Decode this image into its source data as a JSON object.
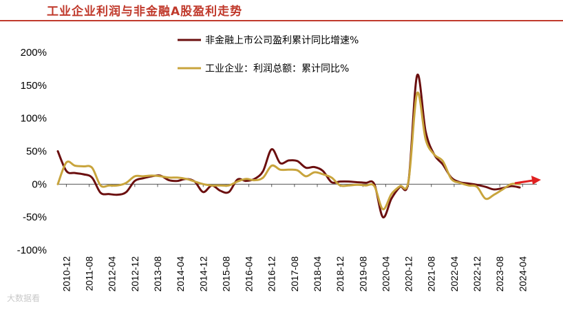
{
  "page_title": "工业企业利润与非金融A股盈利走势",
  "watermark": "大数据看",
  "chart_data": {
    "type": "line",
    "title": "",
    "xlabel": "",
    "ylabel": "",
    "ylim": [
      -100,
      200
    ],
    "yticks": [
      -100,
      -50,
      0,
      50,
      100,
      150,
      200
    ],
    "ytick_suffix": "%",
    "xtick_labels": [
      "2010-12",
      "2011-08",
      "2012-04",
      "2012-12",
      "2013-08",
      "2014-04",
      "2014-12",
      "2015-08",
      "2016-04",
      "2016-12",
      "2017-08",
      "2018-04",
      "2018-12",
      "2019-08",
      "2020-04",
      "2020-12",
      "2021-08",
      "2022-04",
      "2022-12",
      "2023-08",
      "2024-04"
    ],
    "legend_position": "top-center",
    "arrow_color": "#e02020",
    "series": [
      {
        "name": "非金融上市公司盈利累计同比增速%",
        "color": "#6b0f0f",
        "points": [
          [
            "2010-09",
            50
          ],
          [
            "2010-12",
            20
          ],
          [
            "2011-03",
            17
          ],
          [
            "2011-06",
            15
          ],
          [
            "2011-09",
            10
          ],
          [
            "2011-12",
            -13
          ],
          [
            "2012-03",
            -15
          ],
          [
            "2012-06",
            -16
          ],
          [
            "2012-09",
            -12
          ],
          [
            "2012-12",
            5
          ],
          [
            "2013-03",
            9
          ],
          [
            "2013-06",
            12
          ],
          [
            "2013-09",
            13
          ],
          [
            "2013-12",
            6
          ],
          [
            "2014-03",
            5
          ],
          [
            "2014-06",
            8
          ],
          [
            "2014-09",
            4
          ],
          [
            "2014-12",
            -12
          ],
          [
            "2015-03",
            -2
          ],
          [
            "2015-06",
            -10
          ],
          [
            "2015-09",
            -12
          ],
          [
            "2015-12",
            7
          ],
          [
            "2016-03",
            5
          ],
          [
            "2016-06",
            8
          ],
          [
            "2016-09",
            20
          ],
          [
            "2016-12",
            53
          ],
          [
            "2017-03",
            32
          ],
          [
            "2017-06",
            36
          ],
          [
            "2017-09",
            35
          ],
          [
            "2017-12",
            25
          ],
          [
            "2018-03",
            26
          ],
          [
            "2018-06",
            20
          ],
          [
            "2018-09",
            3
          ],
          [
            "2018-12",
            4
          ],
          [
            "2019-03",
            4
          ],
          [
            "2019-06",
            3
          ],
          [
            "2019-09",
            2
          ],
          [
            "2019-12",
            0
          ],
          [
            "2020-03",
            -50
          ],
          [
            "2020-06",
            -22
          ],
          [
            "2020-09",
            -4
          ],
          [
            "2020-12",
            5
          ],
          [
            "2021-03",
            165
          ],
          [
            "2021-06",
            80
          ],
          [
            "2021-09",
            45
          ],
          [
            "2021-12",
            30
          ],
          [
            "2022-03",
            10
          ],
          [
            "2022-06",
            3
          ],
          [
            "2022-09",
            1
          ],
          [
            "2022-12",
            -1
          ],
          [
            "2023-03",
            -4
          ],
          [
            "2023-06",
            -8
          ],
          [
            "2023-09",
            -6
          ],
          [
            "2023-12",
            -3
          ],
          [
            "2024-03",
            -5
          ]
        ]
      },
      {
        "name": "工业企业：利润总额：累计同比%",
        "color": "#c8a43c",
        "points": [
          [
            "2010-09",
            0
          ],
          [
            "2010-12",
            33
          ],
          [
            "2011-03",
            28
          ],
          [
            "2011-06",
            27
          ],
          [
            "2011-09",
            25
          ],
          [
            "2011-12",
            -2
          ],
          [
            "2012-03",
            -2
          ],
          [
            "2012-06",
            -2
          ],
          [
            "2012-09",
            2
          ],
          [
            "2012-12",
            12
          ],
          [
            "2013-03",
            12
          ],
          [
            "2013-06",
            13
          ],
          [
            "2013-09",
            12
          ],
          [
            "2013-12",
            10
          ],
          [
            "2014-03",
            10
          ],
          [
            "2014-06",
            8
          ],
          [
            "2014-09",
            4
          ],
          [
            "2014-12",
            0
          ],
          [
            "2015-03",
            -2
          ],
          [
            "2015-06",
            -2
          ],
          [
            "2015-09",
            -2
          ],
          [
            "2015-12",
            4
          ],
          [
            "2016-03",
            8
          ],
          [
            "2016-06",
            6
          ],
          [
            "2016-09",
            10
          ],
          [
            "2016-12",
            28
          ],
          [
            "2017-03",
            22
          ],
          [
            "2017-06",
            22
          ],
          [
            "2017-09",
            21
          ],
          [
            "2017-12",
            12
          ],
          [
            "2018-03",
            18
          ],
          [
            "2018-06",
            15
          ],
          [
            "2018-09",
            10
          ],
          [
            "2018-12",
            -2
          ],
          [
            "2019-03",
            -2
          ],
          [
            "2019-06",
            -1
          ],
          [
            "2019-09",
            -2
          ],
          [
            "2019-12",
            -3
          ],
          [
            "2020-03",
            -38
          ],
          [
            "2020-06",
            -15
          ],
          [
            "2020-09",
            -3
          ],
          [
            "2020-12",
            5
          ],
          [
            "2021-03",
            138
          ],
          [
            "2021-06",
            68
          ],
          [
            "2021-09",
            45
          ],
          [
            "2021-12",
            35
          ],
          [
            "2022-03",
            8
          ],
          [
            "2022-06",
            2
          ],
          [
            "2022-09",
            -2
          ],
          [
            "2022-12",
            -4
          ],
          [
            "2023-03",
            -22
          ],
          [
            "2023-06",
            -16
          ],
          [
            "2023-09",
            -8
          ],
          [
            "2023-12",
            0
          ],
          [
            "2024-03",
            0
          ]
        ]
      }
    ]
  }
}
